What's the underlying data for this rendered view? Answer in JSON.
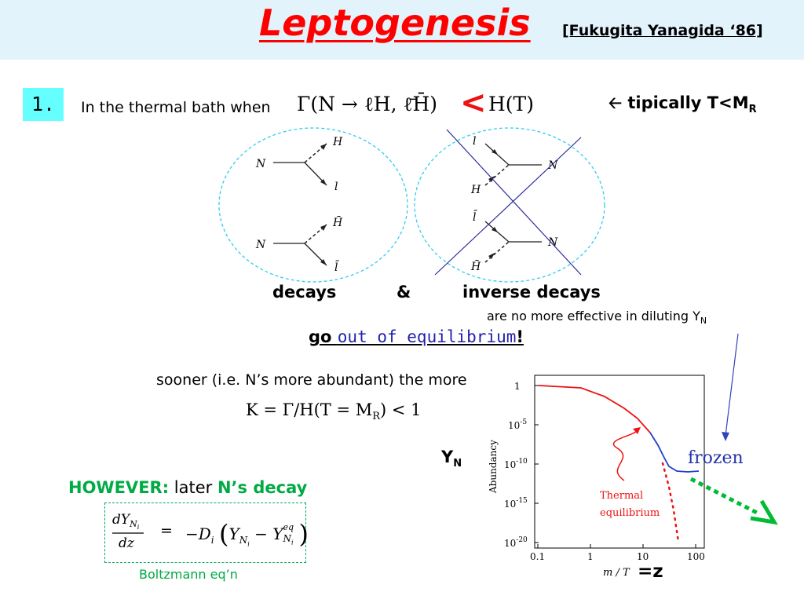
{
  "header": {
    "title": "Leptogenesis",
    "citation": "[Fukugita Yanagida ‘86]"
  },
  "step": {
    "number": "1.",
    "condition_text": "In the thermal bath when",
    "condition_formula": "Γ(N → ℓH, ℓ̄H̄)",
    "condition_symbol": "<",
    "condition_rhs": "H(T)",
    "note_prefix": "tipically T<M",
    "note_subscript": "R"
  },
  "diagrams": {
    "decays": [
      {
        "in": "N",
        "out_top": "H",
        "out_bottom": "l"
      },
      {
        "in": "N",
        "out_top": "H̄",
        "out_bottom": "l̄"
      }
    ],
    "inverse": [
      {
        "in_top": "l",
        "in_bottom": "H",
        "out": "N"
      },
      {
        "in_top": "l̄",
        "in_bottom": "H̄",
        "out": "N"
      }
    ]
  },
  "labels": {
    "decays": "decays",
    "amp": "&",
    "inverse_decays": "inverse decays",
    "not_effective": "are no more effective in diluting Y",
    "not_effective_sub": "N",
    "go": "go",
    "out_of_eq": "out of equilibrium",
    "excl": "!",
    "sooner": "sooner (i.e. N’s more abundant) the more",
    "k_formula": "K = Γ/H(T = M",
    "k_formula_sub": "R",
    "k_formula_end": ") < 1",
    "however": "HOWEVER:",
    "later": "later",
    "ns_decay": "N’s decay",
    "boltzmann": "Boltzmann eq’n",
    "yn": "Y",
    "yn_sub": "N",
    "z": "=z"
  },
  "boltzmann_eq": {
    "lhs_num": "dY",
    "lhs_num_sub": "N",
    "lhs_num_subsub": "i",
    "lhs_den": "dz",
    "equals": "=",
    "rhs_prefix": "−D",
    "rhs_prefix_sub": "i",
    "rhs_y": "Y",
    "rhs_minus": "−",
    "rhs_yeq_sup": "eq"
  },
  "plot": {
    "y_axis_label": "Abundancy",
    "x_axis_label": "m / T",
    "y_ticks": [
      "1",
      "10",
      "10",
      "10",
      "10"
    ],
    "y_tick_exps": [
      "",
      "-5",
      "-10",
      "-15",
      "-20"
    ],
    "x_ticks": [
      "0.1",
      "1",
      "10",
      "100"
    ],
    "frozen_label": "frozen",
    "thermal_label_1": "Thermal",
    "thermal_label_2": "equilibrium"
  },
  "colors": {
    "title": "#ff0000",
    "accent_green": "#00aa44",
    "link_blue": "#2222aa",
    "curve_red": "#ee1111",
    "curve_blue": "#1f3fcc",
    "bubble": "#33ccee"
  }
}
